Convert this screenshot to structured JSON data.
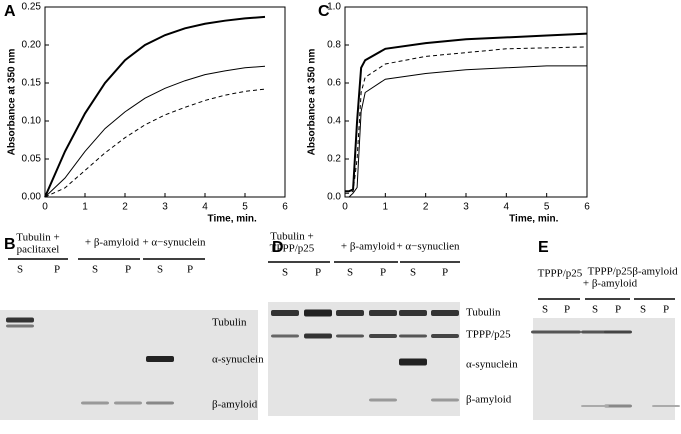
{
  "chart_data": [
    {
      "type": "line",
      "panel": "A",
      "xlabel": "Time, min.",
      "ylabel": "Absorbance at 350 nm",
      "x": [
        0,
        0.5,
        1,
        1.5,
        2,
        2.5,
        3,
        3.5,
        4,
        4.5,
        5,
        5.5
      ],
      "xlim": [
        0,
        6
      ],
      "xticks": [
        0,
        1,
        2,
        3,
        4,
        5,
        6
      ],
      "ylim": [
        0,
        0.25
      ],
      "yticks": [
        {
          "value": 0,
          "label": "0.00"
        },
        {
          "value": 0.05,
          "label": "0.05"
        },
        {
          "value": 0.1,
          "label": "0.10"
        },
        {
          "value": 0.15,
          "label": "0.15"
        },
        {
          "value": 0.2,
          "label": "0.20"
        },
        {
          "value": 0.25,
          "label": "0.25"
        }
      ],
      "series": [
        {
          "color": "#000000",
          "width": 2,
          "style": "solid",
          "values": [
            0,
            0.06,
            0.11,
            0.15,
            0.18,
            0.2,
            0.213,
            0.222,
            0.228,
            0.232,
            0.235,
            0.237
          ]
        },
        {
          "color": "#000000",
          "width": 1,
          "style": "solid",
          "values": [
            0,
            0.025,
            0.06,
            0.09,
            0.112,
            0.13,
            0.143,
            0.153,
            0.161,
            0.166,
            0.17,
            0.172
          ]
        },
        {
          "color": "#000000",
          "width": 1,
          "style": "dashed",
          "values": [
            0,
            0.012,
            0.035,
            0.058,
            0.078,
            0.095,
            0.108,
            0.118,
            0.127,
            0.134,
            0.139,
            0.142
          ]
        }
      ]
    },
    {
      "type": "line",
      "panel": "C",
      "xlabel": "Time, min.",
      "ylabel": "Absorbance at 350 nm",
      "x": [
        0,
        0.1,
        0.2,
        0.3,
        0.4,
        0.5,
        1,
        2,
        3,
        4,
        5,
        6
      ],
      "xlim": [
        0,
        6
      ],
      "xticks": [
        0,
        1,
        2,
        3,
        4,
        5,
        6
      ],
      "ylim": [
        0,
        1
      ],
      "yticks": [
        {
          "value": 0,
          "label": "0.0"
        },
        {
          "value": 0.2,
          "label": "0.2"
        },
        {
          "value": 0.4,
          "label": "0.4"
        },
        {
          "value": 0.6,
          "label": "0.6"
        },
        {
          "value": 0.8,
          "label": "0.8"
        },
        {
          "value": 1,
          "label": "1.0"
        }
      ],
      "series": [
        {
          "color": "#000000",
          "width": 2,
          "style": "solid",
          "values": [
            0.03,
            0.03,
            0.04,
            0.4,
            0.68,
            0.72,
            0.78,
            0.81,
            0.83,
            0.84,
            0.85,
            0.86
          ]
        },
        {
          "color": "#000000",
          "width": 1,
          "style": "dashed",
          "values": [
            0.02,
            0.02,
            0.03,
            0.2,
            0.55,
            0.63,
            0.7,
            0.74,
            0.76,
            0.78,
            0.785,
            0.79
          ]
        },
        {
          "color": "#000000",
          "width": 1,
          "style": "solid",
          "values": [
            0,
            0,
            0.02,
            0.05,
            0.45,
            0.55,
            0.62,
            0.65,
            0.67,
            0.68,
            0.69,
            0.69
          ]
        }
      ]
    }
  ],
  "gels": [
    {
      "panel": "B",
      "groups": [
        {
          "lines": [
            "Tubulin +",
            "paclitaxel"
          ]
        },
        {
          "lines": [
            "+ β-amyloid"
          ]
        },
        {
          "lines": [
            "+ α−synuclein"
          ]
        }
      ],
      "lanes": [
        "S",
        "P",
        "S",
        "P",
        "S",
        "P"
      ],
      "markers": [
        "Tubulin",
        "α-synuclein",
        "β-amyloid"
      ]
    },
    {
      "panel": "D",
      "groups": [
        {
          "lines": [
            "Tubulin +",
            "TPPP/p25"
          ]
        },
        {
          "lines": [
            "+ β-amyloid"
          ]
        },
        {
          "lines": [
            "+ α−synuclien"
          ]
        }
      ],
      "lanes": [
        "S",
        "P",
        "S",
        "P",
        "S",
        "P"
      ],
      "markers": [
        "Tubulin",
        "TPPP/p25",
        "α-synuclein",
        "β-amyloid"
      ]
    },
    {
      "panel": "E",
      "groups": [
        {
          "lines": [
            "TPPP/p25"
          ]
        },
        {
          "lines": [
            "TPPP/p25",
            "+ β-amyloid"
          ]
        },
        {
          "lines": [
            "β-amyloid"
          ]
        }
      ],
      "lanes": [
        "S",
        "P",
        "S",
        "P",
        "S",
        "P"
      ]
    }
  ]
}
